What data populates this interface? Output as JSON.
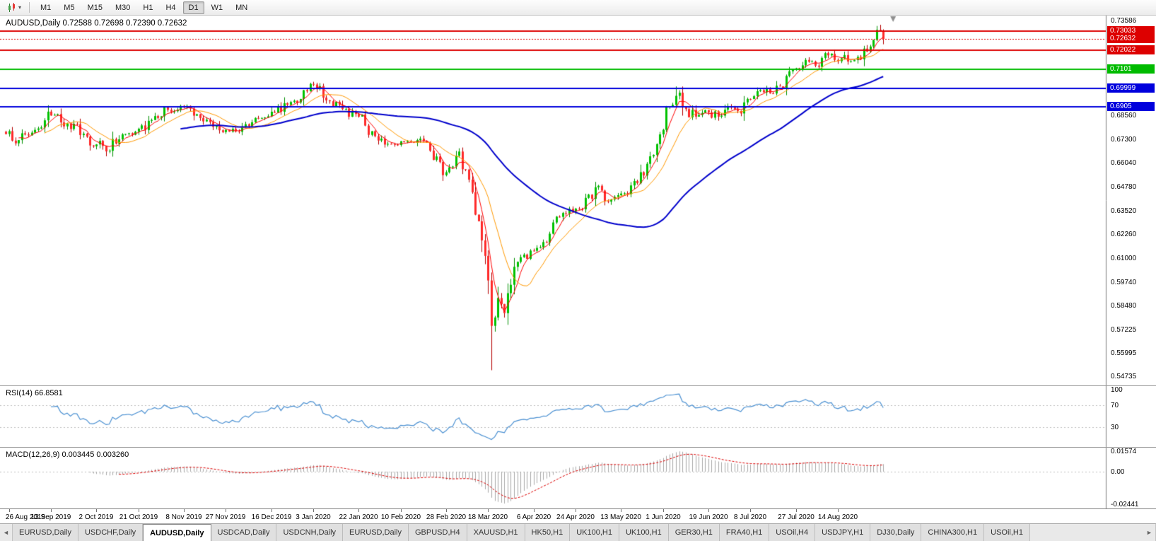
{
  "icons": {
    "chevron_down": "▾",
    "tab_scroll_left": "◄",
    "tab_scroll_right": "►"
  },
  "toolbar": {
    "chart_type_icon": "candlestick-chart",
    "timeframes": [
      "M1",
      "M5",
      "M15",
      "M30",
      "H1",
      "H4",
      "D1",
      "W1",
      "MN"
    ],
    "active_timeframe": "D1"
  },
  "chart": {
    "symbol": "AUDUSD",
    "period": "Daily",
    "open": "0.72588",
    "high": "0.72698",
    "low": "0.72390",
    "close": "0.72632",
    "title_line": "AUDUSD,Daily 0.72588 0.72698 0.72390 0.72632"
  },
  "chart_data": {
    "type": "candlestick",
    "title": "AUDUSD,Daily",
    "legend_position": "none",
    "grid": "off",
    "x_ticks": [
      "26 Aug 2019",
      "13 Sep 2019",
      "2 Oct 2019",
      "21 Oct 2019",
      "8 Nov 2019",
      "27 Nov 2019",
      "16 Dec 2019",
      "3 Jan 2020",
      "22 Jan 2020",
      "10 Feb 2020",
      "28 Feb 2020",
      "18 Mar 2020",
      "6 Apr 2020",
      "24 Apr 2020",
      "13 May 2020",
      "1 Jun 2020",
      "19 Jun 2020",
      "8 Jul 2020",
      "27 Jul 2020",
      "14 Aug 2020"
    ],
    "x_tick_indices": [
      1,
      14,
      28,
      41,
      55,
      68,
      82,
      95,
      109,
      122,
      136,
      149,
      163,
      176,
      190,
      203,
      217,
      230,
      244,
      257
    ],
    "price_axis": {
      "min": 0.5452,
      "max": 0.7372,
      "tick_labels": [
        "0.73586",
        "0.68560",
        "0.67300",
        "0.66040",
        "0.64780",
        "0.63520",
        "0.62260",
        "0.61000",
        "0.59740",
        "0.58480",
        "0.57225",
        "0.55995",
        "0.54735"
      ]
    },
    "levels": [
      {
        "value": 0.73033,
        "label": "0.73033",
        "color": "#dd0000",
        "style": "solid"
      },
      {
        "value": 0.72022,
        "label": "0.72022",
        "color": "#dd0000",
        "style": "solid"
      },
      {
        "value": 0.7101,
        "label": "0.7101",
        "color": "#00bb00",
        "style": "solid"
      },
      {
        "value": 0.69999,
        "label": "0.69999",
        "color": "#0000dd",
        "style": "solid"
      },
      {
        "value": 0.6905,
        "label": "0.6905",
        "color": "#0000dd",
        "style": "solid"
      }
    ],
    "current_price": {
      "value": 0.72632,
      "label": "0.72632",
      "color": "#dd0000"
    },
    "moving_averages": [
      {
        "period": 5,
        "color": "#ff0000",
        "width": 1
      },
      {
        "period": 13,
        "color": "#ff9900",
        "width": 1
      },
      {
        "period": 55,
        "color": "#0000cc",
        "width": 2
      }
    ],
    "candles": {
      "count": 272,
      "up_color": "#00c200",
      "down_color": "#ff2a2a",
      "keyframes": [
        [
          0,
          0.676
        ],
        [
          4,
          0.6728
        ],
        [
          9,
          0.6782
        ],
        [
          14,
          0.6858
        ],
        [
          19,
          0.6815
        ],
        [
          24,
          0.6762
        ],
        [
          28,
          0.6705
        ],
        [
          31,
          0.6668
        ],
        [
          36,
          0.6758
        ],
        [
          41,
          0.6788
        ],
        [
          46,
          0.6855
        ],
        [
          50,
          0.6888
        ],
        [
          55,
          0.6902
        ],
        [
          60,
          0.6845
        ],
        [
          64,
          0.6798
        ],
        [
          68,
          0.6782
        ],
        [
          72,
          0.6772
        ],
        [
          77,
          0.6845
        ],
        [
          82,
          0.6878
        ],
        [
          87,
          0.6915
        ],
        [
          92,
          0.6992
        ],
        [
          95,
          0.7022
        ],
        [
          99,
          0.6938
        ],
        [
          104,
          0.6892
        ],
        [
          109,
          0.6852
        ],
        [
          113,
          0.6775
        ],
        [
          118,
          0.6708
        ],
        [
          122,
          0.6722
        ],
        [
          127,
          0.6728
        ],
        [
          131,
          0.6672
        ],
        [
          134,
          0.6612
        ],
        [
          136,
          0.6558
        ],
        [
          139,
          0.6645
        ],
        [
          142,
          0.6572
        ],
        [
          144,
          0.6452
        ],
        [
          146,
          0.6298
        ],
        [
          148,
          0.6115
        ],
        [
          149,
          0.5985
        ],
        [
          150,
          0.5745
        ],
        [
          152,
          0.5892
        ],
        [
          154,
          0.5812
        ],
        [
          156,
          0.5962
        ],
        [
          159,
          0.6108
        ],
        [
          163,
          0.6142
        ],
        [
          166,
          0.6188
        ],
        [
          169,
          0.6292
        ],
        [
          172,
          0.6342
        ],
        [
          176,
          0.6365
        ],
        [
          179,
          0.6422
        ],
        [
          182,
          0.6478
        ],
        [
          185,
          0.6405
        ],
        [
          190,
          0.6445
        ],
        [
          193,
          0.6488
        ],
        [
          196,
          0.6558
        ],
        [
          199,
          0.6642
        ],
        [
          202,
          0.6758
        ],
        [
          205,
          0.6905
        ],
        [
          207,
          0.6962
        ],
        [
          210,
          0.6892
        ],
        [
          213,
          0.6852
        ],
        [
          217,
          0.6875
        ],
        [
          220,
          0.6852
        ],
        [
          223,
          0.6905
        ],
        [
          226,
          0.6882
        ],
        [
          230,
          0.6945
        ],
        [
          233,
          0.6992
        ],
        [
          236,
          0.6975
        ],
        [
          239,
          0.7012
        ],
        [
          242,
          0.7092
        ],
        [
          244,
          0.7108
        ],
        [
          247,
          0.7152
        ],
        [
          250,
          0.7122
        ],
        [
          253,
          0.7188
        ],
        [
          256,
          0.7152
        ],
        [
          259,
          0.7178
        ],
        [
          262,
          0.7152
        ],
        [
          265,
          0.7212
        ],
        [
          268,
          0.7258
        ],
        [
          270,
          0.7308
        ],
        [
          271,
          0.72632
        ]
      ],
      "annotations": [
        {
          "index": 150,
          "type": "low",
          "value": 0.551
        },
        {
          "index": 207,
          "type": "high",
          "value": 0.7012
        },
        {
          "index": 270,
          "type": "high",
          "value": 0.7338
        }
      ]
    },
    "indicators": {
      "rsi": {
        "display": "RSI(14) 66.8581",
        "period": 14,
        "value": 66.8581,
        "color": "#4a90d2",
        "axis_labels": [
          "100",
          "70",
          "30"
        ],
        "level_lines": [
          70,
          30
        ]
      },
      "macd": {
        "display": "MACD(12,26,9) 0.003445 0.003260",
        "fast": 12,
        "slow": 26,
        "signal_period": 9,
        "value": 0.003445,
        "signal_value": 0.00326,
        "histogram_color": "#a8a8a8",
        "signal_color": "#dd0000",
        "axis_labels": [
          "0.01574",
          "0.00",
          "-0.02441"
        ],
        "axis_max": 0.01574,
        "axis_min": -0.02441
      }
    }
  },
  "tabs": {
    "items": [
      "EURUSD,Daily",
      "USDCHF,Daily",
      "AUDUSD,Daily",
      "USDCAD,Daily",
      "USDCNH,Daily",
      "EURUSD,Daily",
      "GBPUSD,H4",
      "XAUUSD,H1",
      "HK50,H1",
      "UK100,H1",
      "UK100,H1",
      "GER30,H1",
      "FRA40,H1",
      "USOil,H4",
      "USDJPY,H1",
      "DJ30,Daily",
      "CHINA300,H1",
      "USOil,H1"
    ],
    "active_index": 2
  }
}
